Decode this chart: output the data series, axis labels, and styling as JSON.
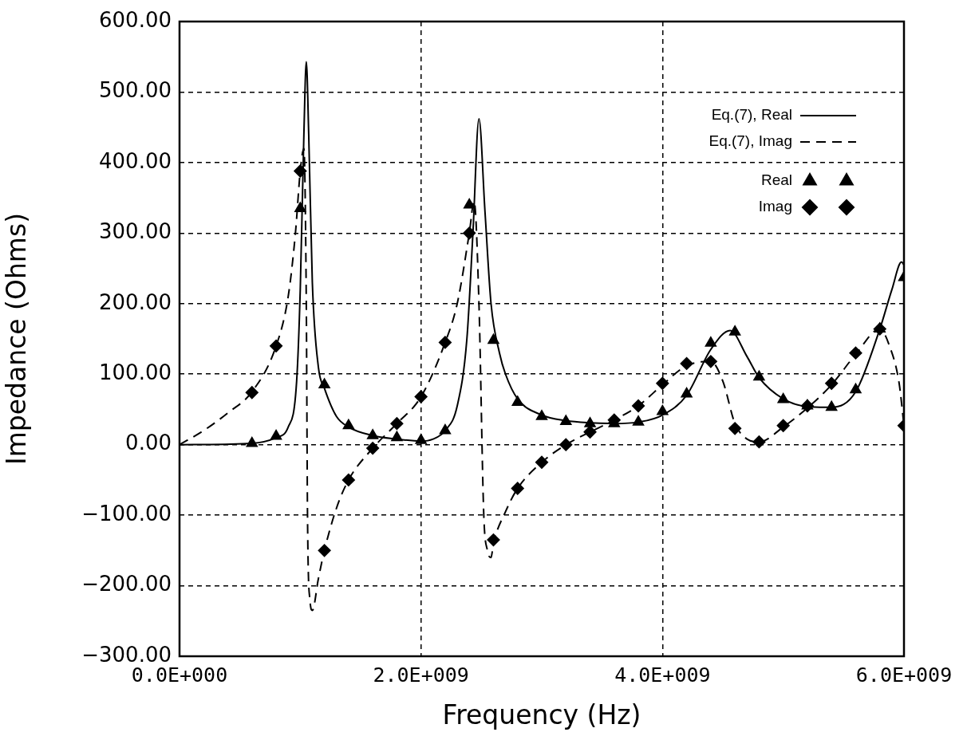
{
  "chart_data": {
    "type": "line",
    "xlabel": "Frequency (Hz)",
    "ylabel": "Impedance (Ohms)",
    "xlim": [
      0,
      6000000000.0
    ],
    "ylim": [
      -300,
      600
    ],
    "xticks": [
      {
        "value": 0,
        "label": "0.0E+000"
      },
      {
        "value": 2000000000.0,
        "label": "2.0E+009"
      },
      {
        "value": 4000000000.0,
        "label": "4.0E+009"
      },
      {
        "value": 6000000000.0,
        "label": "6.0E+009"
      }
    ],
    "yticks": [
      {
        "value": -300,
        "label": "−300.00"
      },
      {
        "value": -200,
        "label": "−200.00"
      },
      {
        "value": -100,
        "label": "−100.00"
      },
      {
        "value": 0,
        "label": "0.00"
      },
      {
        "value": 100,
        "label": "100.00"
      },
      {
        "value": 200,
        "label": "200.00"
      },
      {
        "value": 300,
        "label": "300.00"
      },
      {
        "value": 400,
        "label": "400.00"
      },
      {
        "value": 500,
        "label": "500.00"
      },
      {
        "value": 600,
        "label": "600.00"
      }
    ],
    "grid": true,
    "legend": "top right",
    "series": [
      {
        "name": "Eq.(7), Real",
        "type": "line",
        "color": "#000000",
        "line_style": "solid",
        "marker": "none",
        "x": [
          0,
          600000000.0,
          800000000.0,
          900000000.0,
          970000000.0,
          1000000000.0,
          1030000000.0,
          1050000000.0,
          1070000000.0,
          1100000000.0,
          1150000000.0,
          1200000000.0,
          1300000000.0,
          1400000000.0,
          1600000000.0,
          1800000000.0,
          2000000000.0,
          2100000000.0,
          2200000000.0,
          2300000000.0,
          2380000000.0,
          2430000000.0,
          2480000000.0,
          2530000000.0,
          2580000000.0,
          2650000000.0,
          2700000000.0,
          2800000000.0,
          3000000000.0,
          3200000000.0,
          3400000000.0,
          3600000000.0,
          3800000000.0,
          4000000000.0,
          4200000000.0,
          4400000000.0,
          4560000000.0,
          4700000000.0,
          4800000000.0,
          5000000000.0,
          5200000000.0,
          5400000000.0,
          5600000000.0,
          5800000000.0,
          5900000000.0,
          5980000000.0,
          6000000000.0
        ],
        "values": [
          0,
          2,
          10,
          25,
          90,
          220,
          440,
          543,
          440,
          230,
          110,
          80,
          40,
          25,
          13,
          8,
          5,
          8,
          20,
          55,
          150,
          300,
          462,
          330,
          200,
          130,
          100,
          65,
          42,
          34,
          31,
          30,
          32,
          42,
          70,
          135,
          162,
          125,
          95,
          65,
          54,
          53,
          75,
          164,
          220,
          259,
          255
        ]
      },
      {
        "name": "Eq.(7), Imag",
        "type": "line",
        "color": "#000000",
        "line_style": "dashed",
        "marker": "none",
        "x": [
          0,
          200000000.0,
          400000000.0,
          600000000.0,
          800000000.0,
          900000000.0,
          960000000.0,
          1000000000.0,
          1030000000.0,
          1050000000.0,
          1060000000.0,
          1080000000.0,
          1100000000.0,
          1150000000.0,
          1200000000.0,
          1300000000.0,
          1400000000.0,
          1600000000.0,
          1800000000.0,
          2000000000.0,
          2200000000.0,
          2300000000.0,
          2400000000.0,
          2440000000.0,
          2480000000.0,
          2520000000.0,
          2550000000.0,
          2580000000.0,
          2600000000.0,
          2700000000.0,
          2800000000.0,
          3000000000.0,
          3200000000.0,
          3400000000.0,
          3600000000.0,
          3800000000.0,
          4000000000.0,
          4200000000.0,
          4400000000.0,
          4500000000.0,
          4600000000.0,
          4700000000.0,
          4800000000.0,
          5000000000.0,
          5200000000.0,
          5400000000.0,
          5600000000.0,
          5800000000.0,
          5880000000.0,
          5960000000.0,
          6000000000.0
        ],
        "values": [
          0,
          20,
          45,
          75,
          140,
          210,
          300,
          388,
          420,
          200,
          -100,
          -220,
          -235,
          -190,
          -150,
          -90,
          -50,
          -5,
          30,
          68,
          145,
          200,
          300,
          345,
          200,
          -100,
          -150,
          -160,
          -140,
          -95,
          -62,
          -25,
          0,
          18,
          35,
          55,
          85,
          112,
          118,
          90,
          30,
          8,
          4,
          25,
          52,
          85,
          128,
          164,
          140,
          87,
          27
        ]
      },
      {
        "name": "Real",
        "type": "scatter",
        "color": "#000000",
        "marker": "triangle",
        "x": [
          600000000.0,
          800000000.0,
          1000000000.0,
          1200000000.0,
          1400000000.0,
          1600000000.0,
          1800000000.0,
          2000000000.0,
          2200000000.0,
          2400000000.0,
          2600000000.0,
          2800000000.0,
          3000000000.0,
          3200000000.0,
          3400000000.0,
          3600000000.0,
          3800000000.0,
          4000000000.0,
          4200000000.0,
          4400000000.0,
          4600000000.0,
          4800000000.0,
          5000000000.0,
          5200000000.0,
          5400000000.0,
          5600000000.0,
          5800000000.0,
          6000000000.0
        ],
        "values": [
          2,
          12,
          335,
          85,
          27,
          13,
          10,
          6,
          20,
          340,
          148,
          60,
          40,
          33,
          30,
          30,
          32,
          47,
          72,
          144,
          160,
          96,
          64,
          55,
          53,
          78,
          164,
          237
        ]
      },
      {
        "name": "Imag",
        "type": "scatter",
        "color": "#000000",
        "marker": "diamond",
        "x": [
          600000000.0,
          800000000.0,
          1000000000.0,
          1200000000.0,
          1400000000.0,
          1600000000.0,
          1800000000.0,
          2000000000.0,
          2200000000.0,
          2400000000.0,
          2600000000.0,
          2800000000.0,
          3000000000.0,
          3200000000.0,
          3400000000.0,
          3600000000.0,
          3800000000.0,
          4000000000.0,
          4200000000.0,
          4400000000.0,
          4600000000.0,
          4800000000.0,
          5000000000.0,
          5200000000.0,
          5400000000.0,
          5600000000.0,
          5800000000.0,
          6000000000.0
        ],
        "values": [
          74,
          140,
          388,
          -150,
          -50,
          -5,
          30,
          68,
          145,
          300,
          -135,
          -62,
          -25,
          0,
          18,
          35,
          55,
          87,
          115,
          118,
          23,
          4,
          27,
          55,
          87,
          130,
          164,
          27
        ]
      }
    ]
  }
}
